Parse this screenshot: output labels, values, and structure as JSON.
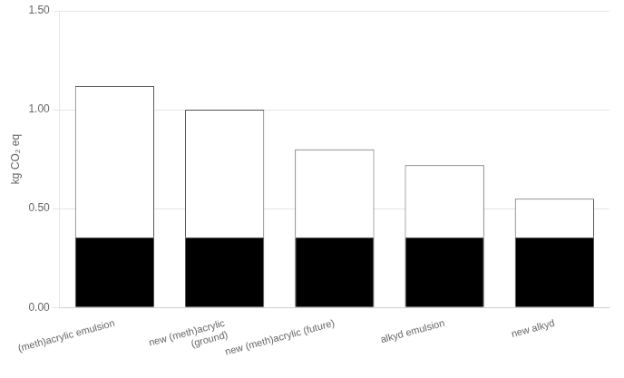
{
  "chart_data": {
    "type": "bar",
    "stacked": true,
    "categories": [
      "(meth)acrylic emulsion",
      "new (meth)acrylic\n(ground)",
      "new (meth)acrylic (future)",
      "alkyd emulsion",
      "new alkyd"
    ],
    "series": [
      {
        "color": "#000000",
        "values": [
          0.355,
          0.355,
          0.355,
          0.355,
          0.355
        ]
      },
      {
        "color": "#ffffff",
        "values": [
          0.765,
          0.645,
          0.445,
          0.365,
          0.195
        ]
      }
    ],
    "y_label": "kg CO₂ eq",
    "ylim": [
      0.0,
      1.5
    ],
    "yticks": [
      {
        "value": 0.0,
        "label": "0.00"
      },
      {
        "value": 0.5,
        "label": "0.50"
      },
      {
        "value": 1.0,
        "label": "1.00"
      },
      {
        "value": 1.5,
        "label": "1.50"
      }
    ],
    "grid": true
  }
}
